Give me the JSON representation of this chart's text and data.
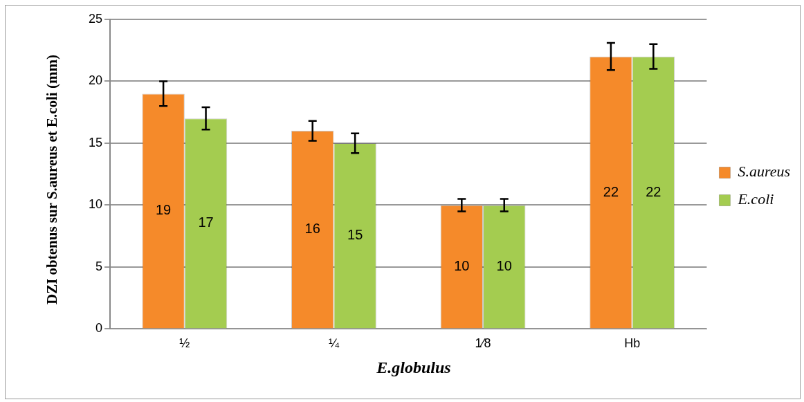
{
  "chart_data": {
    "type": "bar",
    "categories": [
      "½",
      "¼",
      "1⁄8",
      "Hb"
    ],
    "series": [
      {
        "name": "S.aureus",
        "color": "#f58a2a",
        "values": [
          19,
          16,
          10,
          22
        ],
        "errors": [
          1,
          0.8,
          0.5,
          1.1
        ]
      },
      {
        "name": "E.coli",
        "color": "#a4cc50",
        "values": [
          17,
          15,
          10,
          22
        ],
        "errors": [
          0.9,
          0.8,
          0.5,
          1
        ]
      }
    ],
    "xlabel": "E.globulus",
    "ylabel": "DZI  obtenus sur S.aureus et E.coli (mm)",
    "ylim": [
      0,
      25
    ],
    "yticks": [
      0,
      5,
      10,
      15,
      20,
      25
    ],
    "grid": "y",
    "legend": "right",
    "data_labels": true
  }
}
